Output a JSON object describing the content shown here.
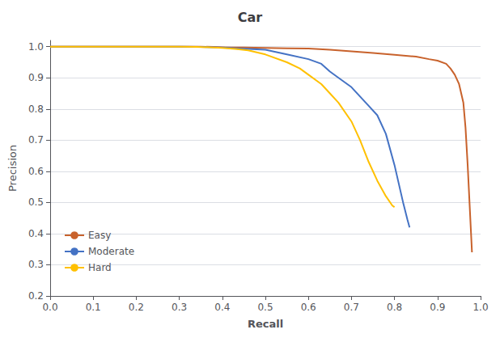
{
  "chart_data": {
    "type": "line",
    "title": "Car",
    "xlabel": "Recall",
    "ylabel": "Precision",
    "xlim": [
      0.0,
      1.0
    ],
    "ylim": [
      0.2,
      1.02
    ],
    "xticks": [
      {
        "value": 0.0,
        "label": "0.0"
      },
      0.1,
      0.2,
      0.3,
      0.4,
      0.5,
      0.6,
      0.7,
      0.8,
      0.9,
      {
        "value": 1.0,
        "label": "1.0"
      }
    ],
    "yticks": [
      0.2,
      0.3,
      0.4,
      0.5,
      0.6,
      0.7,
      0.8,
      0.9,
      {
        "value": 1.0,
        "label": "1.0"
      }
    ],
    "grid": true,
    "legend": "lower left",
    "series": [
      {
        "name": "Easy",
        "color": "#C8622C",
        "x": [
          0.0,
          0.05,
          0.1,
          0.2,
          0.3,
          0.35,
          0.38,
          0.4,
          0.42,
          0.45,
          0.5,
          0.55,
          0.6,
          0.65,
          0.7,
          0.75,
          0.8,
          0.85,
          0.88,
          0.9,
          0.92,
          0.93,
          0.94,
          0.95,
          0.96,
          0.965,
          0.97,
          0.975,
          0.98
        ],
        "values": [
          1.0,
          1.0,
          1.0,
          1.0,
          1.0,
          1.0,
          0.999,
          0.998,
          0.997,
          0.997,
          0.996,
          0.995,
          0.994,
          0.99,
          0.985,
          0.98,
          0.974,
          0.968,
          0.96,
          0.955,
          0.945,
          0.93,
          0.91,
          0.88,
          0.82,
          0.74,
          0.62,
          0.48,
          0.34
        ]
      },
      {
        "name": "Moderate",
        "color": "#4472C4",
        "x": [
          0.0,
          0.05,
          0.1,
          0.2,
          0.3,
          0.35,
          0.38,
          0.4,
          0.43,
          0.46,
          0.5,
          0.55,
          0.6,
          0.63,
          0.65,
          0.67,
          0.7,
          0.72,
          0.74,
          0.76,
          0.78,
          0.8,
          0.82,
          0.83,
          0.835
        ],
        "values": [
          1.0,
          1.0,
          1.0,
          1.0,
          1.0,
          0.999,
          0.998,
          0.997,
          0.995,
          0.993,
          0.99,
          0.975,
          0.96,
          0.945,
          0.92,
          0.9,
          0.87,
          0.84,
          0.81,
          0.78,
          0.72,
          0.62,
          0.5,
          0.445,
          0.42
        ]
      },
      {
        "name": "Hard",
        "color": "#FFC000",
        "x": [
          0.0,
          0.05,
          0.1,
          0.2,
          0.3,
          0.34,
          0.37,
          0.4,
          0.43,
          0.46,
          0.5,
          0.55,
          0.58,
          0.6,
          0.63,
          0.65,
          0.67,
          0.7,
          0.72,
          0.74,
          0.76,
          0.78,
          0.795,
          0.8
        ],
        "values": [
          1.0,
          1.0,
          1.0,
          1.0,
          1.0,
          0.999,
          0.998,
          0.996,
          0.993,
          0.988,
          0.975,
          0.95,
          0.93,
          0.91,
          0.88,
          0.85,
          0.82,
          0.76,
          0.7,
          0.63,
          0.57,
          0.52,
          0.49,
          0.485
        ]
      }
    ]
  }
}
